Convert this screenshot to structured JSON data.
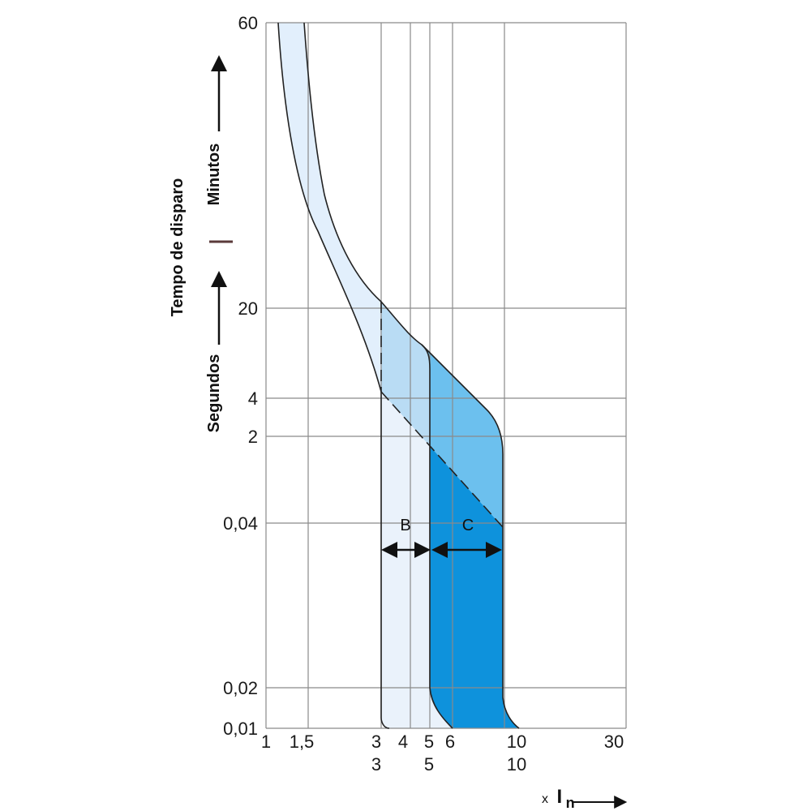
{
  "chart_data": {
    "type": "area",
    "title": "",
    "ylabel": "Tempo de disparo",
    "y_segments": [
      "Segundos",
      "Minutos"
    ],
    "xlabel_main": "x",
    "xlabel_sym": "I",
    "xlabel_sub": "n",
    "x_ticks_top": [
      "1",
      "1,5",
      "3",
      "4",
      "5",
      "6",
      "10",
      "30"
    ],
    "x_ticks_bottom": [
      "3",
      "5",
      "10"
    ],
    "y_ticks": [
      "60",
      "20",
      "4",
      "2",
      "0,04",
      "0,02",
      "0,01"
    ],
    "grid": true,
    "series": [
      {
        "name": "B",
        "x_range": [
          3,
          5
        ]
      },
      {
        "name": "C",
        "x_range": [
          5,
          10
        ]
      }
    ],
    "colors": {
      "grid": "#8a8a8a",
      "curve": "#222222",
      "thermal_band": "#e2effc",
      "b_band_lower": "#eaf2fb",
      "b_band_upper": "#b9dcf4",
      "c_band_upper": "#6cc0ee",
      "c_band_lower": "#0e92dc"
    }
  }
}
